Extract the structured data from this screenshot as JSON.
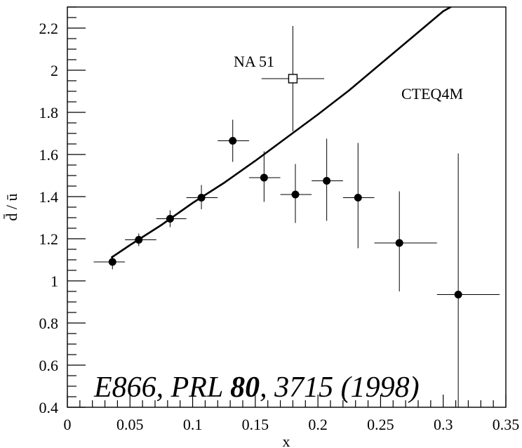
{
  "chart_data": {
    "type": "scatter",
    "xlabel": "x",
    "ylabel": "d̄ / ū",
    "xlim": [
      0,
      0.35
    ],
    "ylim": [
      0.4,
      2.3
    ],
    "x_ticks": [
      "0",
      "0.05",
      "0.1",
      "0.15",
      "0.2",
      "0.25",
      "0.3",
      "0.35"
    ],
    "y_ticks": [
      "0.4",
      "0.6",
      "0.8",
      "1",
      "1.2",
      "1.4",
      "1.6",
      "1.8",
      "2",
      "2.2"
    ],
    "grid": false,
    "series": [
      {
        "name": "E866",
        "marker": "filled-circle",
        "points": [
          {
            "x": 0.036,
            "y": 1.09,
            "xlo": 0.021,
            "xhi": 0.046,
            "ylo": 1.055,
            "yhi": 1.12
          },
          {
            "x": 0.057,
            "y": 1.195,
            "xlo": 0.046,
            "xhi": 0.071,
            "ylo": 1.165,
            "yhi": 1.225
          },
          {
            "x": 0.082,
            "y": 1.295,
            "xlo": 0.071,
            "xhi": 0.095,
            "ylo": 1.255,
            "yhi": 1.335
          },
          {
            "x": 0.107,
            "y": 1.395,
            "xlo": 0.095,
            "xhi": 0.12,
            "ylo": 1.34,
            "yhi": 1.455
          },
          {
            "x": 0.132,
            "y": 1.665,
            "xlo": 0.12,
            "xhi": 0.145,
            "ylo": 1.565,
            "yhi": 1.765
          },
          {
            "x": 0.157,
            "y": 1.49,
            "xlo": 0.145,
            "xhi": 0.17,
            "ylo": 1.375,
            "yhi": 1.615
          },
          {
            "x": 0.182,
            "y": 1.41,
            "xlo": 0.17,
            "xhi": 0.195,
            "ylo": 1.275,
            "yhi": 1.555
          },
          {
            "x": 0.207,
            "y": 1.475,
            "xlo": 0.195,
            "xhi": 0.22,
            "ylo": 1.285,
            "yhi": 1.675
          },
          {
            "x": 0.232,
            "y": 1.395,
            "xlo": 0.22,
            "xhi": 0.245,
            "ylo": 1.155,
            "yhi": 1.655
          },
          {
            "x": 0.265,
            "y": 1.18,
            "xlo": 0.245,
            "xhi": 0.295,
            "ylo": 0.95,
            "yhi": 1.425
          },
          {
            "x": 0.312,
            "y": 0.935,
            "xlo": 0.295,
            "xhi": 0.345,
            "ylo": 0.4,
            "yhi": 1.605
          }
        ]
      },
      {
        "name": "NA 51",
        "marker": "open-square",
        "points": [
          {
            "x": 0.18,
            "y": 1.96,
            "xlo": 0.155,
            "xhi": 0.205,
            "ylo": 1.71,
            "yhi": 2.21
          }
        ]
      }
    ],
    "curve": {
      "name": "CTEQ4M",
      "x": [
        0.035,
        0.05,
        0.075,
        0.1,
        0.125,
        0.15,
        0.175,
        0.2,
        0.225,
        0.25,
        0.275,
        0.3,
        0.312
      ],
      "y": [
        1.11,
        1.17,
        1.265,
        1.37,
        1.465,
        1.57,
        1.68,
        1.79,
        1.905,
        2.03,
        2.155,
        2.28,
        2.32
      ]
    },
    "annotations": [
      {
        "text": "NA 51",
        "x": 0.155,
        "y": 2.04
      },
      {
        "text": "CTEQ4M",
        "x": 0.254,
        "y": 1.885
      }
    ],
    "citation": {
      "part1": "E866, PRL ",
      "bold": "80",
      "part2": ", 3715 (1998)"
    }
  }
}
